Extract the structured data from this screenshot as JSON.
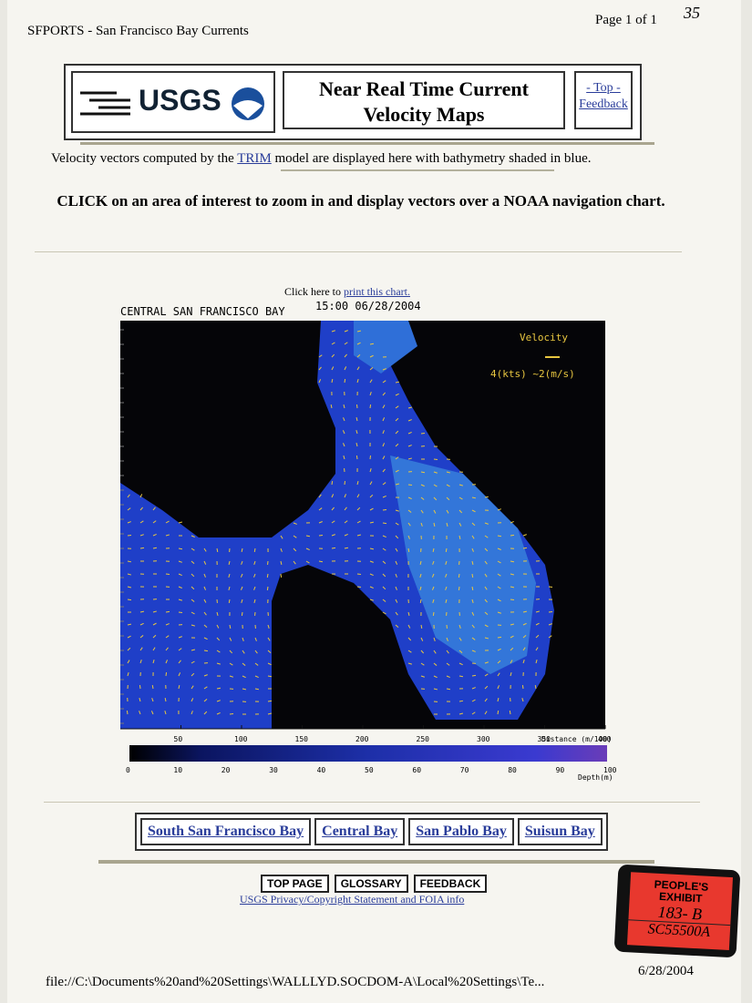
{
  "header": {
    "site": "SFPORTS - San Francisco Bay Currents",
    "page": "Page 1 of 1",
    "handwritten": "35"
  },
  "banner": {
    "logo": "USGS",
    "title": "Near Real Time Current Velocity Maps",
    "links": [
      "- Top -",
      "Feedback"
    ]
  },
  "intro": {
    "before": "Velocity vectors computed by the ",
    "link": "TRIM",
    "after": " model are displayed here with bathymetry shaded in blue."
  },
  "instruction": "CLICK on an area of interest to zoom in and display vectors over a NOAA navigation chart.",
  "print": {
    "before": "Click here to ",
    "link": "print this chart."
  },
  "map": {
    "title": "CENTRAL SAN FRANCISCO BAY",
    "time": "15:00 06/28/2004",
    "legend_title": "Velocity",
    "legend_scale": "4(kts) ~2(m/s)",
    "x_ticks": [
      50,
      100,
      150,
      200,
      250,
      300,
      350,
      400
    ],
    "x_label": "Distance (m/100)",
    "depth_ticks": [
      0,
      10,
      20,
      30,
      40,
      50,
      60,
      70,
      80,
      90,
      100
    ],
    "depth_label": "Depth(m)"
  },
  "nav": [
    "South San Francisco Bay",
    "Central Bay",
    "San Pablo Bay",
    "Suisun Bay"
  ],
  "buttons": [
    "TOP PAGE",
    "GLOSSARY",
    "FEEDBACK"
  ],
  "privacy": "USGS Privacy/Copyright Statement and FOIA info",
  "sticker": {
    "line1": "PEOPLE'S",
    "line2": "EXHIBIT",
    "number": "183- B",
    "case": "SC55500A"
  },
  "footer": {
    "path": "file://C:\\Documents%20and%20Settings\\WALLLYD.SOCDOM-A\\Local%20Settings\\Te...",
    "date": "6/28/2004"
  }
}
